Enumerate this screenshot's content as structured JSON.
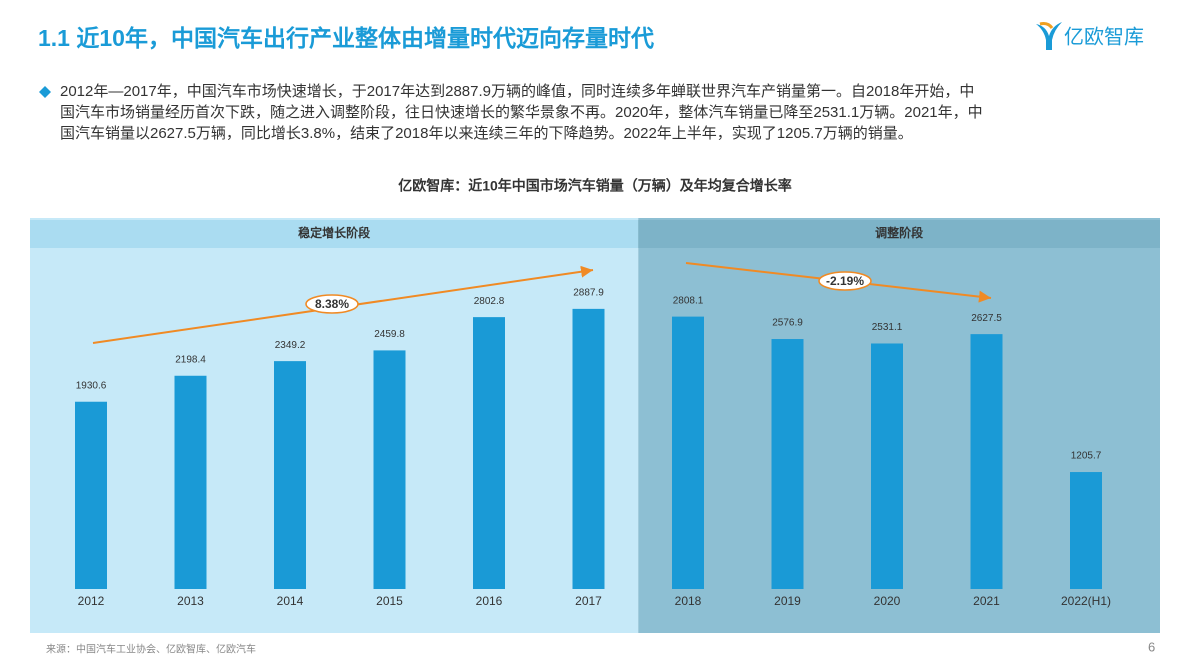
{
  "header": {
    "title": "1.1 近10年，中国汽车出行产业整体由增量时代迈向存量时代",
    "logo": "亿欧智库"
  },
  "body": {
    "lines": [
      "2012年—2017年，中国汽车市场快速增长，于2017年达到2887.9万辆的峰值，同时连续多年蝉联世界汽车产销量第一。自2018年开始，中",
      "国汽车市场销量经历首次下跌，随之进入调整阶段，往日快速增长的繁华景象不再。2020年，整体汽车销量已降至2531.1万辆。2021年，中",
      "国汽车销量以2627.5万辆，同比增长3.8%，结束了2018年以来连续三年的下降趋势。2022年上半年，实现了1205.7万辆的销量。"
    ]
  },
  "chart_data": {
    "type": "bar",
    "title": "亿欧智库：近10年中国市场汽车销量（万辆）及年均复合增长率",
    "categories": [
      "2012",
      "2013",
      "2014",
      "2015",
      "2016",
      "2017",
      "2018",
      "2019",
      "2020",
      "2021",
      "2022(H1)"
    ],
    "values": [
      1930.6,
      2198.4,
      2349.2,
      2459.8,
      2802.8,
      2887.9,
      2808.1,
      2576.9,
      2531.1,
      2627.5,
      1205.7
    ],
    "color": "#1a9ad6",
    "phases": [
      {
        "label": "稳定增长阶段",
        "color": "#c6e9f8",
        "header_color": "#aadcf1"
      },
      {
        "label": "调整阶段",
        "color": "#8dbfd3",
        "header_color": "#7db3c8"
      }
    ],
    "annotations": [
      {
        "text": "8.38%"
      },
      {
        "text": "-2.19%"
      }
    ],
    "arrow_color": "#f08a24"
  },
  "footer": {
    "source": "来源：中国汽车工业协会、亿欧智库、亿欧汽车",
    "page": "6"
  }
}
